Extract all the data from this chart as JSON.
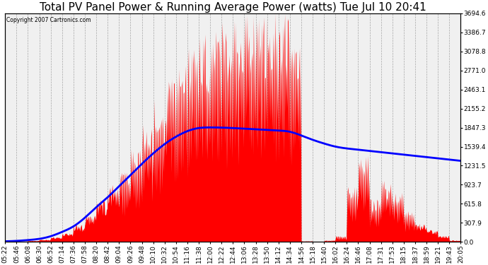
{
  "title": "Total PV Panel Power & Running Average Power (watts) Tue Jul 10 20:41",
  "copyright": "Copyright 2007 Cartronics.com",
  "ylabel_right_ticks": [
    0.0,
    307.9,
    615.8,
    923.7,
    1231.5,
    1539.4,
    1847.3,
    2155.2,
    2463.1,
    2771.0,
    3078.8,
    3386.7,
    3694.6
  ],
  "ymax": 3694.6,
  "ymin": 0.0,
  "x_labels": [
    "05:22",
    "05:46",
    "06:08",
    "06:30",
    "06:52",
    "07:14",
    "07:36",
    "07:58",
    "08:20",
    "08:42",
    "09:04",
    "09:26",
    "09:48",
    "10:10",
    "10:32",
    "10:54",
    "11:16",
    "11:38",
    "12:00",
    "12:22",
    "12:44",
    "13:06",
    "13:28",
    "13:50",
    "14:12",
    "14:34",
    "14:56",
    "15:18",
    "15:40",
    "16:02",
    "16:24",
    "16:46",
    "17:08",
    "17:31",
    "17:53",
    "18:15",
    "18:37",
    "18:59",
    "19:21",
    "19:43",
    "20:05"
  ],
  "pv_envelope": [
    5,
    10,
    20,
    40,
    80,
    150,
    280,
    450,
    700,
    950,
    1200,
    1500,
    1900,
    2300,
    2700,
    2900,
    3200,
    3400,
    3500,
    3600,
    3650,
    3694,
    3694,
    3694,
    3694,
    3200,
    100,
    50,
    30,
    100,
    900,
    1400,
    700,
    1000,
    800,
    500,
    300,
    200,
    100,
    30,
    5
  ],
  "pv_floor": [
    5,
    10,
    18,
    35,
    70,
    130,
    220,
    380,
    580,
    820,
    1000,
    1300,
    1600,
    1900,
    2200,
    2400,
    2600,
    2700,
    2800,
    2900,
    3000,
    3100,
    3100,
    3100,
    3100,
    2800,
    80,
    30,
    20,
    80,
    750,
    1100,
    550,
    800,
    650,
    400,
    250,
    150,
    80,
    20,
    3
  ],
  "running_avg": [
    8,
    15,
    28,
    48,
    90,
    160,
    250,
    390,
    560,
    720,
    900,
    1080,
    1260,
    1430,
    1580,
    1700,
    1790,
    1840,
    1850,
    1847,
    1840,
    1830,
    1820,
    1810,
    1800,
    1780,
    1720,
    1650,
    1590,
    1540,
    1510,
    1490,
    1470,
    1450,
    1430,
    1410,
    1390,
    1370,
    1350,
    1330,
    1310
  ],
  "pv_color": "#ff0000",
  "avg_color": "#0000ff",
  "bg_color": "#ffffff",
  "plot_bg_color": "#f0f0f0",
  "grid_color": "#888888",
  "title_fontsize": 11,
  "tick_fontsize": 6.5,
  "fig_width": 6.9,
  "fig_height": 3.75
}
